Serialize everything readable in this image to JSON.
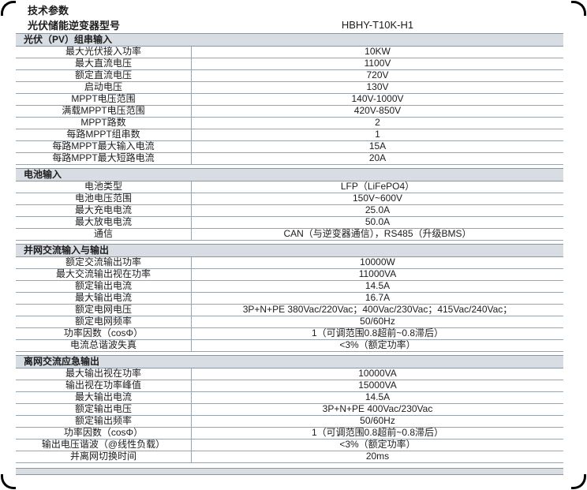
{
  "page": {
    "title": "技术参数",
    "model_row": {
      "label": "光伏储能逆变器型号",
      "value": "HBHY-T10K-H1"
    }
  },
  "sections": [
    {
      "header": "光伏（PV）组串输入",
      "rows": [
        {
          "label": "最大光伏接入功率",
          "value": "10KW"
        },
        {
          "label": "最大直流电压",
          "value": "1100V"
        },
        {
          "label": "额定直流电压",
          "value": "720V"
        },
        {
          "label": "启动电压",
          "value": "130V"
        },
        {
          "label": "MPPT电压范围",
          "value": "140V-1000V"
        },
        {
          "label": "满载MPPT电压范围",
          "value": "420V-850V"
        },
        {
          "label": "MPPT路数",
          "value": "2"
        },
        {
          "label": "每路MPPT组串数",
          "value": "1"
        },
        {
          "label": "每路MPPT最大输入电流",
          "value": "15A"
        },
        {
          "label": "每路MPPT最大短路电流",
          "value": "20A"
        }
      ]
    },
    {
      "header": "电池输入",
      "rows": [
        {
          "label": "电池类型",
          "value": "LFP（LiFePO4）"
        },
        {
          "label": "电池电压范围",
          "value": "150V~600V"
        },
        {
          "label": "最大充电电流",
          "value": "25.0A"
        },
        {
          "label": "最大放电电流",
          "value": "50.0A"
        },
        {
          "label": "通信",
          "value": "CAN（与逆变器通信），RS485（升级BMS）"
        }
      ]
    },
    {
      "header": "并网交流输入与输出",
      "rows": [
        {
          "label": "额定交流输出功率",
          "value": "10000W"
        },
        {
          "label": "最大交流输出视在功率",
          "value": "11000VA"
        },
        {
          "label": "额定输出电流",
          "value": "14.5A"
        },
        {
          "label": "最大输出电流",
          "value": "16.7A"
        },
        {
          "label": "额定电网电压",
          "value": "3P+N+PE 380Vac/220Vac；400Vac/230Vac；415Vac/240Vac；"
        },
        {
          "label": "额定电网频率",
          "value": "50/60Hz"
        },
        {
          "label": "功率因数（cosΦ）",
          "value": "1（可调范围0.8超前~0.8滞后）"
        },
        {
          "label": "电流总谐波失真",
          "value": "<3%（额定功率）"
        }
      ]
    },
    {
      "header": "离网交流应急输出",
      "rows": [
        {
          "label": "最大输出视在功率",
          "value": "10000VA"
        },
        {
          "label": "输出视在功率峰值",
          "value": "15000VA"
        },
        {
          "label": "最大输出电流",
          "value": "14.5A"
        },
        {
          "label": "额定输出电压",
          "value": "3P+N+PE 400Vac/230Vac"
        },
        {
          "label": "额定输出频率",
          "value": "50/60Hz"
        },
        {
          "label": "功率因数（cosΦ）",
          "value": "1（可调范围0.8超前~0.8滞后）"
        },
        {
          "label": "输出电压谐波（@线性负载）",
          "value": "<3%（额定功率）"
        },
        {
          "label": "并离网切换时间",
          "value": "20ms"
        }
      ]
    }
  ],
  "colors": {
    "section_header_bg": "#d7dde3",
    "row_border": "#9aa4ad",
    "section_border": "#8b96a0",
    "text": "#1c1c1c"
  }
}
